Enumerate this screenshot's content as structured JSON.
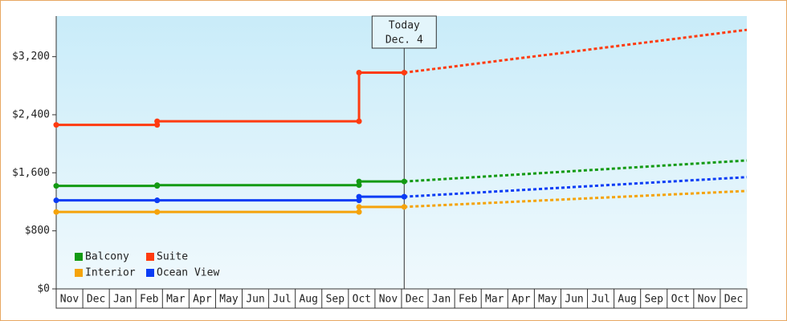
{
  "chart_data": {
    "type": "line",
    "categories": [
      "Nov",
      "Dec",
      "Jan",
      "Feb",
      "Mar",
      "Apr",
      "May",
      "Jun",
      "Jul",
      "Aug",
      "Sep",
      "Oct",
      "Nov",
      "Dec",
      "Jan",
      "Feb",
      "Mar",
      "Apr",
      "May",
      "Jun",
      "Jul",
      "Aug",
      "Sep",
      "Oct",
      "Nov",
      "Dec"
    ],
    "xlim": [
      0,
      26
    ],
    "x": [
      0,
      3.8,
      3.8,
      11.4,
      11.4,
      13.1
    ],
    "forecast_x": [
      13.1,
      26
    ],
    "ylim": [
      0,
      3760
    ],
    "yticks": [
      {
        "value": 0,
        "label": "$0"
      },
      {
        "value": 800,
        "label": "$800"
      },
      {
        "value": 1600,
        "label": "$1,600"
      },
      {
        "value": 2400,
        "label": "$2,400"
      },
      {
        "value": 3200,
        "label": "$3,200"
      }
    ],
    "annotation": {
      "x": 13.1,
      "lines": [
        "Today",
        "Dec. 4"
      ]
    },
    "series": [
      {
        "name": "Balcony",
        "color": "#139a13",
        "values": [
          1420,
          1420,
          1430,
          1430,
          1480,
          1480
        ],
        "forecast": [
          1480,
          1770
        ]
      },
      {
        "name": "Suite",
        "color": "#ff3b10",
        "values": [
          2260,
          2260,
          2310,
          2310,
          2980,
          2980
        ],
        "forecast": [
          2980,
          3570
        ]
      },
      {
        "name": "Interior",
        "color": "#f5a30a",
        "values": [
          1060,
          1060,
          1060,
          1060,
          1130,
          1130
        ],
        "forecast": [
          1130,
          1350
        ]
      },
      {
        "name": "Ocean View",
        "color": "#0a3cf5",
        "values": [
          1220,
          1220,
          1220,
          1220,
          1270,
          1270
        ],
        "forecast": [
          1270,
          1540
        ]
      }
    ]
  }
}
